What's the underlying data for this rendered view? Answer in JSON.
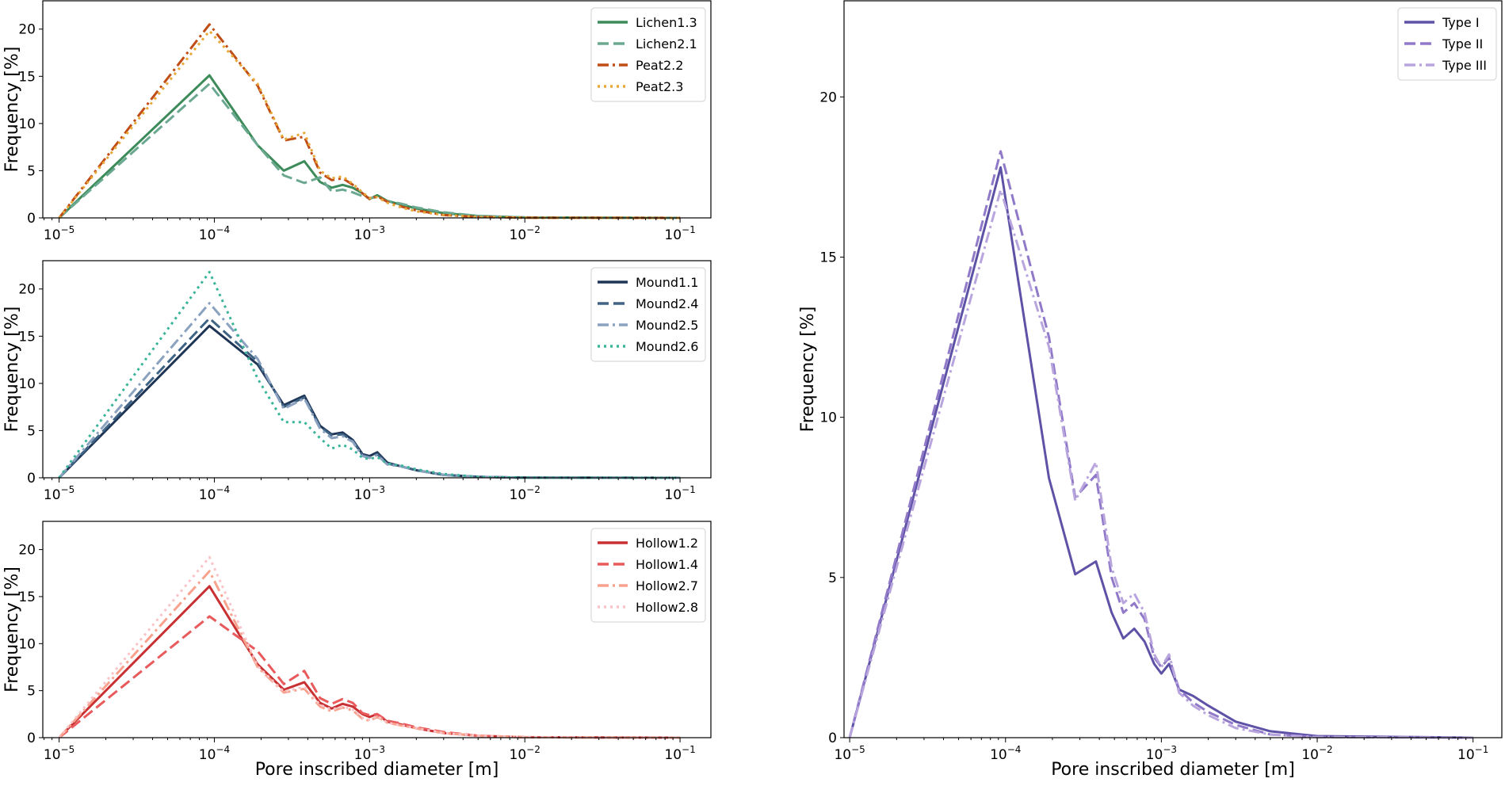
{
  "chart_data": [
    {
      "type": "line",
      "title": "",
      "xlabel": "",
      "ylabel": "Frequency [%]",
      "xscale": "log",
      "xlim": [
        7.85e-06,
        0.158
      ],
      "ylim": [
        0,
        23
      ],
      "yticks": [
        0,
        5,
        10,
        15,
        20
      ],
      "xticks": [
        -5,
        -4,
        -3,
        -2,
        -1
      ],
      "xtick_labels": [
        "10^-5",
        "10^-4",
        "10^-3",
        "10^-2",
        "10^-1"
      ],
      "legend_position": "top-right",
      "grid": false,
      "x": [
        1e-05,
        9.3e-05,
        0.00019,
        0.00028,
        0.00038,
        0.00048,
        0.00057,
        0.00067,
        0.00078,
        0.0009,
        0.001,
        0.00112,
        0.0013,
        0.0016,
        0.002,
        0.003,
        0.005,
        0.01,
        0.1
      ],
      "series": [
        {
          "name": "Lichen1.3",
          "color": "#3d8b5a",
          "style": "solid",
          "values": [
            0,
            15.1,
            7.7,
            5,
            6,
            3.8,
            3.2,
            3.5,
            3.2,
            2.6,
            2.0,
            2.4,
            1.8,
            1.4,
            1.0,
            0.5,
            0.2,
            0.05,
            0
          ]
        },
        {
          "name": "Lichen2.1",
          "color": "#6aa890",
          "style": "dashed",
          "values": [
            0,
            14.2,
            7.7,
            4.5,
            3.7,
            4.3,
            2.8,
            3.0,
            2.7,
            2.3,
            2.1,
            2.2,
            1.8,
            1.5,
            1.1,
            0.6,
            0.2,
            0.05,
            0
          ]
        },
        {
          "name": "Peat2.2",
          "color": "#c04d16",
          "style": "dashdot",
          "values": [
            0,
            20.5,
            14,
            8.2,
            8.6,
            4.8,
            4.0,
            4.2,
            3.5,
            2.6,
            2.0,
            2.3,
            1.7,
            1.2,
            0.8,
            0.3,
            0.1,
            0.02,
            0
          ]
        },
        {
          "name": "Peat2.3",
          "color": "#e8a838",
          "style": "dotted",
          "values": [
            0,
            19.8,
            14.2,
            8.3,
            9.0,
            5.0,
            4.2,
            4.4,
            3.6,
            2.7,
            2.1,
            2.2,
            1.6,
            1.1,
            0.7,
            0.3,
            0.1,
            0.02,
            0
          ]
        }
      ]
    },
    {
      "type": "line",
      "title": "",
      "xlabel": "",
      "ylabel": "Frequency [%]",
      "xscale": "log",
      "xlim": [
        7.85e-06,
        0.158
      ],
      "ylim": [
        0,
        23
      ],
      "yticks": [
        0,
        5,
        10,
        15,
        20
      ],
      "xticks": [
        -5,
        -4,
        -3,
        -2,
        -1
      ],
      "xtick_labels": [
        "10^-5",
        "10^-4",
        "10^-3",
        "10^-2",
        "10^-1"
      ],
      "legend_position": "top-right",
      "grid": false,
      "x": [
        1e-05,
        9.3e-05,
        0.00019,
        0.00028,
        0.00038,
        0.00048,
        0.00057,
        0.00067,
        0.00078,
        0.0009,
        0.001,
        0.00112,
        0.0013,
        0.0016,
        0.002,
        0.003,
        0.005,
        0.01,
        0.1
      ],
      "series": [
        {
          "name": "Mound1.1",
          "color": "#1f3556",
          "style": "solid",
          "values": [
            0,
            16.1,
            12,
            7.7,
            8.7,
            5.5,
            4.6,
            4.8,
            4.0,
            2.5,
            2.3,
            2.7,
            1.6,
            1.2,
            0.8,
            0.3,
            0.1,
            0.02,
            0
          ]
        },
        {
          "name": "Mound2.4",
          "color": "#3f6485",
          "style": "dashed",
          "values": [
            0,
            16.9,
            12.3,
            7.5,
            8.5,
            5.4,
            4.5,
            4.6,
            3.9,
            2.4,
            2.2,
            2.5,
            1.5,
            1.2,
            0.8,
            0.3,
            0.1,
            0.02,
            0
          ]
        },
        {
          "name": "Mound2.5",
          "color": "#8aa2bf",
          "style": "dashdot",
          "values": [
            0,
            18.5,
            12.6,
            7.3,
            8.4,
            5.2,
            4.2,
            4.4,
            3.8,
            2.3,
            2.1,
            2.4,
            1.4,
            1.2,
            0.8,
            0.3,
            0.1,
            0.02,
            0
          ]
        },
        {
          "name": "Mound2.6",
          "color": "#3bb59a",
          "style": "dotted",
          "values": [
            0,
            21.8,
            10.5,
            5.9,
            5.9,
            4.2,
            3.1,
            3.5,
            3.0,
            2.1,
            2.0,
            2.2,
            1.5,
            1.3,
            0.9,
            0.4,
            0.1,
            0.02,
            0
          ]
        }
      ]
    },
    {
      "type": "line",
      "title": "",
      "xlabel": "Pore inscribed diameter [m]",
      "ylabel": "Frequency [%]",
      "xscale": "log",
      "xlim": [
        7.85e-06,
        0.158
      ],
      "ylim": [
        0,
        23
      ],
      "yticks": [
        0,
        5,
        10,
        15,
        20
      ],
      "xticks": [
        -5,
        -4,
        -3,
        -2,
        -1
      ],
      "xtick_labels": [
        "10^-5",
        "10^-4",
        "10^-3",
        "10^-2",
        "10^-1"
      ],
      "legend_position": "top-right",
      "grid": false,
      "x": [
        1e-05,
        9.3e-05,
        0.00019,
        0.00028,
        0.00038,
        0.00048,
        0.00057,
        0.00067,
        0.00078,
        0.0009,
        0.001,
        0.00112,
        0.0013,
        0.0016,
        0.002,
        0.003,
        0.005,
        0.01,
        0.1
      ],
      "series": [
        {
          "name": "Hollow1.2",
          "color": "#c93032",
          "style": "solid",
          "values": [
            0,
            16.1,
            7.8,
            5.1,
            5.9,
            3.7,
            3.1,
            3.6,
            3.3,
            2.5,
            2.2,
            2.5,
            1.7,
            1.4,
            1.0,
            0.5,
            0.2,
            0.05,
            0
          ]
        },
        {
          "name": "Hollow1.4",
          "color": "#e85a5c",
          "style": "dashed",
          "values": [
            0,
            12.9,
            9.2,
            5.7,
            7.1,
            4.2,
            3.6,
            4.1,
            3.7,
            2.6,
            2.4,
            2.5,
            1.8,
            1.5,
            1.1,
            0.6,
            0.2,
            0.05,
            0
          ]
        },
        {
          "name": "Hollow2.7",
          "color": "#f8a28e",
          "style": "dashdot",
          "values": [
            0,
            17.7,
            7.5,
            4.8,
            5.2,
            3.3,
            2.8,
            3.2,
            2.9,
            2.0,
            1.8,
            2.2,
            1.6,
            1.3,
            1.0,
            0.5,
            0.2,
            0.05,
            0
          ]
        },
        {
          "name": "Hollow2.8",
          "color": "#f9c3c8",
          "style": "dotted",
          "values": [
            0,
            19.2,
            7.6,
            4.9,
            5.4,
            3.5,
            3.0,
            3.3,
            3.0,
            2.1,
            1.9,
            2.3,
            1.6,
            1.3,
            1.0,
            0.5,
            0.2,
            0.05,
            0
          ]
        }
      ]
    },
    {
      "type": "line",
      "title": "",
      "xlabel": "Pore inscribed diameter [m]",
      "ylabel": "Frequency [%]",
      "xscale": "log",
      "xlim": [
        9.2e-06,
        0.153
      ],
      "ylim": [
        0,
        23
      ],
      "yticks": [
        0,
        5,
        10,
        15,
        20
      ],
      "xticks": [
        -5,
        -4,
        -3,
        -2,
        -1
      ],
      "xtick_labels": [
        "10^-5",
        "10^-4",
        "10^-3",
        "10^-2",
        "10^-1"
      ],
      "legend_position": "top-right",
      "grid": false,
      "x": [
        1e-05,
        9.3e-05,
        0.00019,
        0.00028,
        0.00038,
        0.00048,
        0.00057,
        0.00067,
        0.00078,
        0.0009,
        0.001,
        0.00112,
        0.0013,
        0.0016,
        0.002,
        0.003,
        0.005,
        0.01,
        0.1
      ],
      "series": [
        {
          "name": "Type I",
          "color": "#5e52a6",
          "style": "solid",
          "values": [
            0,
            17.8,
            8.1,
            5.1,
            5.5,
            3.9,
            3.1,
            3.4,
            3.0,
            2.3,
            2.0,
            2.3,
            1.5,
            1.3,
            1.0,
            0.5,
            0.2,
            0.05,
            0
          ]
        },
        {
          "name": "Type II",
          "color": "#8f79c8",
          "style": "dashed",
          "values": [
            0,
            18.3,
            12.5,
            7.5,
            8.2,
            5.0,
            3.9,
            4.2,
            3.7,
            2.5,
            2.2,
            2.5,
            1.5,
            1.1,
            0.8,
            0.4,
            0.1,
            0.02,
            0
          ]
        },
        {
          "name": "Type III",
          "color": "#b9a5de",
          "style": "dashdot",
          "values": [
            0,
            17.1,
            12.2,
            7.4,
            8.6,
            5.3,
            4.2,
            4.5,
            3.9,
            2.6,
            2.2,
            2.6,
            1.4,
            1.0,
            0.7,
            0.3,
            0.1,
            0.02,
            0
          ]
        }
      ]
    }
  ]
}
